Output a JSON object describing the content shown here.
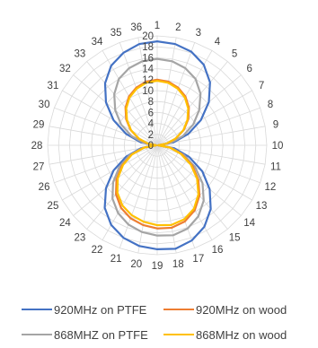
{
  "chart_data": {
    "type": "radar",
    "categories": [
      "1",
      "2",
      "3",
      "4",
      "5",
      "6",
      "7",
      "8",
      "9",
      "10",
      "11",
      "12",
      "13",
      "14",
      "15",
      "16",
      "17",
      "18",
      "19",
      "20",
      "21",
      "22",
      "23",
      "24",
      "25",
      "26",
      "27",
      "28",
      "29",
      "30",
      "31",
      "32",
      "33",
      "34",
      "35",
      "36"
    ],
    "radial_ticks": [
      0,
      2,
      4,
      6,
      8,
      10,
      12,
      14,
      16,
      18,
      20
    ],
    "rlim": [
      0,
      20
    ],
    "grid": true,
    "legend_position": "bottom",
    "series": [
      {
        "name": "920MHz on PTFE",
        "color": "#4472C4",
        "values": [
          19.0,
          18.8,
          18.2,
          17.0,
          15.0,
          12.3,
          9.2,
          6.0,
          3.0,
          0.2,
          3.2,
          6.2,
          9.5,
          12.5,
          15.2,
          17.2,
          18.5,
          19.2,
          19.0,
          18.7,
          18.0,
          16.8,
          14.9,
          12.2,
          9.2,
          6.0,
          3.0,
          0.2,
          3.0,
          6.0,
          9.2,
          12.2,
          14.8,
          16.8,
          18.0,
          18.8
        ]
      },
      {
        "name": "920MHz on wood",
        "color": "#ED7D31",
        "values": [
          12.0,
          11.8,
          11.2,
          10.3,
          9.0,
          7.4,
          5.6,
          3.6,
          1.8,
          0.2,
          2.4,
          4.8,
          7.4,
          9.8,
          12.0,
          13.7,
          14.8,
          15.3,
          15.2,
          14.8,
          14.2,
          13.2,
          11.7,
          9.7,
          7.4,
          5.0,
          2.5,
          0.2,
          1.8,
          3.6,
          5.6,
          7.4,
          9.0,
          10.3,
          11.2,
          11.8
        ]
      },
      {
        "name": "868MHZ on PTFE",
        "color": "#A5A5A5",
        "values": [
          15.8,
          15.6,
          15.0,
          14.0,
          12.3,
          10.0,
          7.6,
          5.0,
          2.5,
          0.2,
          2.6,
          5.2,
          8.0,
          10.8,
          13.2,
          15.0,
          16.2,
          16.7,
          16.5,
          16.1,
          15.4,
          14.3,
          12.7,
          10.5,
          8.0,
          5.4,
          2.7,
          0.2,
          2.5,
          5.0,
          7.6,
          10.0,
          12.2,
          14.0,
          15.0,
          15.6
        ]
      },
      {
        "name": "868MHz on wood",
        "color": "#FFC000",
        "values": [
          11.8,
          11.6,
          11.0,
          10.1,
          8.8,
          7.2,
          5.5,
          3.5,
          1.7,
          0.2,
          2.3,
          4.6,
          7.1,
          9.5,
          11.7,
          13.4,
          14.4,
          14.8,
          14.6,
          14.2,
          13.6,
          12.7,
          11.3,
          9.4,
          7.2,
          4.9,
          2.4,
          0.2,
          1.7,
          3.5,
          5.5,
          7.2,
          8.8,
          10.1,
          11.0,
          11.6
        ]
      }
    ]
  },
  "legend": [
    {
      "label": "920MHz on PTFE",
      "color": "#4472C4"
    },
    {
      "label": "920MHz on wood",
      "color": "#ED7D31"
    },
    {
      "label": "868MHZ on PTFE",
      "color": "#A5A5A5"
    },
    {
      "label": "868MHz on wood",
      "color": "#FFC000"
    }
  ]
}
